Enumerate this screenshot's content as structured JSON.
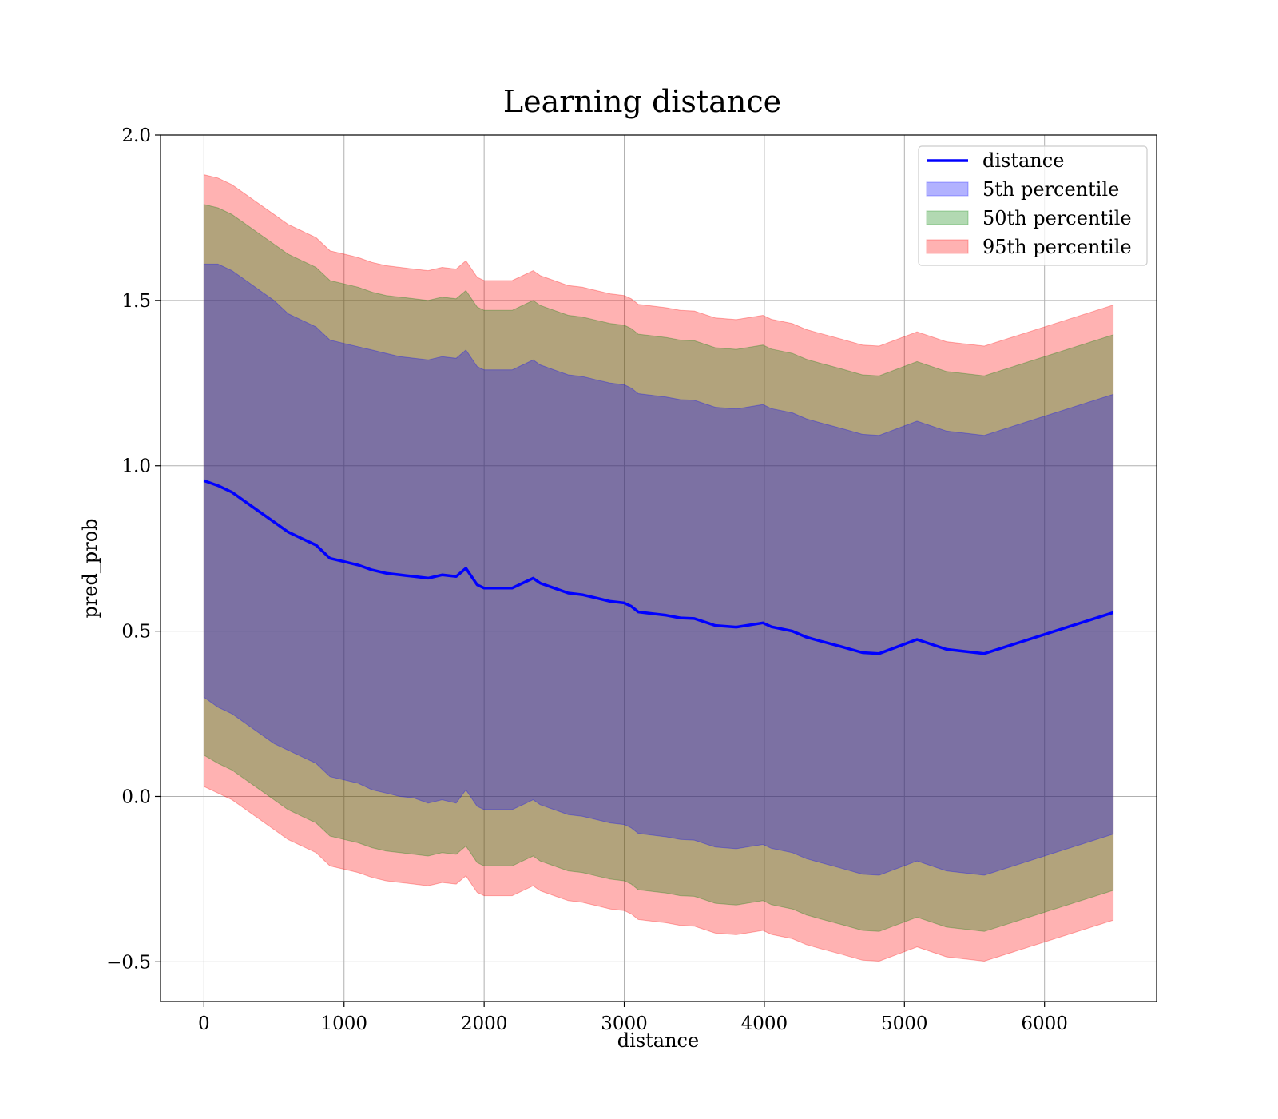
{
  "chart_data": {
    "type": "line",
    "title": "Learning distance",
    "xlabel": "distance",
    "ylabel": "pred_prob",
    "xlim": [
      -310,
      6800
    ],
    "ylim": [
      -0.62,
      2.0
    ],
    "x_ticks": [
      0,
      1000,
      2000,
      3000,
      4000,
      5000,
      6000
    ],
    "x_tick_labels": [
      "0",
      "1000",
      "2000",
      "3000",
      "4000",
      "5000",
      "6000"
    ],
    "y_ticks": [
      -0.5,
      0.0,
      0.5,
      1.0,
      1.5,
      2.0
    ],
    "y_tick_labels": [
      "−0.5",
      "0.0",
      "0.5",
      "1.0",
      "1.5",
      "2.0"
    ],
    "grid": true,
    "legend_position": "top-right",
    "legend": [
      "distance",
      "5th percentile",
      "50th percentile",
      "95th percentile"
    ],
    "x": [
      0,
      100,
      200,
      300,
      400,
      500,
      600,
      700,
      800,
      900,
      1000,
      1100,
      1200,
      1300,
      1400,
      1500,
      1600,
      1700,
      1800,
      1870,
      1950,
      2000,
      2100,
      2200,
      2300,
      2350,
      2400,
      2500,
      2600,
      2700,
      2800,
      2900,
      3000,
      3050,
      3100,
      3200,
      3300,
      3400,
      3500,
      3650,
      3800,
      3990,
      4050,
      4200,
      4300,
      4400,
      4550,
      4700,
      4820,
      5090,
      5300,
      5570,
      6490
    ],
    "series": [
      {
        "name": "distance",
        "color": "#0000ff",
        "values": [
          0.955,
          0.94,
          0.92,
          0.89,
          0.86,
          0.83,
          0.8,
          0.78,
          0.76,
          0.72,
          0.71,
          0.7,
          0.685,
          0.675,
          0.67,
          0.665,
          0.66,
          0.67,
          0.665,
          0.69,
          0.64,
          0.63,
          0.63,
          0.63,
          0.65,
          0.66,
          0.645,
          0.63,
          0.615,
          0.61,
          0.6,
          0.59,
          0.585,
          0.575,
          0.558,
          0.553,
          0.548,
          0.54,
          0.538,
          0.517,
          0.512,
          0.525,
          0.513,
          0.5,
          0.482,
          0.47,
          0.453,
          0.435,
          0.432,
          0.475,
          0.445,
          0.432,
          0.556
        ]
      },
      {
        "name": "5th percentile",
        "color": "#0000ff",
        "fill_opacity": 0.3,
        "lower": [
          0.3,
          0.27,
          0.25,
          0.22,
          0.19,
          0.16,
          0.14,
          0.12,
          0.1,
          0.06,
          0.05,
          0.04,
          0.02,
          0.01,
          0.0,
          -0.005,
          -0.02,
          -0.01,
          -0.02,
          0.02,
          -0.03,
          -0.04,
          -0.04,
          -0.04,
          -0.02,
          -0.01,
          -0.025,
          -0.04,
          -0.055,
          -0.06,
          -0.07,
          -0.08,
          -0.085,
          -0.095,
          -0.112,
          -0.117,
          -0.122,
          -0.13,
          -0.132,
          -0.153,
          -0.158,
          -0.145,
          -0.157,
          -0.17,
          -0.188,
          -0.2,
          -0.217,
          -0.235,
          -0.238,
          -0.195,
          -0.225,
          -0.238,
          -0.114
        ],
        "upper": [
          1.61,
          1.61,
          1.59,
          1.56,
          1.53,
          1.5,
          1.46,
          1.44,
          1.42,
          1.38,
          1.37,
          1.36,
          1.35,
          1.34,
          1.33,
          1.325,
          1.32,
          1.33,
          1.325,
          1.35,
          1.3,
          1.29,
          1.29,
          1.29,
          1.31,
          1.32,
          1.305,
          1.29,
          1.275,
          1.27,
          1.26,
          1.25,
          1.245,
          1.235,
          1.218,
          1.213,
          1.208,
          1.2,
          1.198,
          1.177,
          1.172,
          1.185,
          1.173,
          1.16,
          1.142,
          1.13,
          1.113,
          1.095,
          1.092,
          1.135,
          1.105,
          1.092,
          1.216
        ]
      },
      {
        "name": "50th percentile",
        "color": "#008000",
        "fill_opacity": 0.3,
        "lower": [
          0.125,
          0.1,
          0.08,
          0.05,
          0.02,
          -0.01,
          -0.04,
          -0.06,
          -0.08,
          -0.12,
          -0.13,
          -0.14,
          -0.155,
          -0.165,
          -0.17,
          -0.175,
          -0.18,
          -0.17,
          -0.175,
          -0.15,
          -0.2,
          -0.21,
          -0.21,
          -0.21,
          -0.19,
          -0.18,
          -0.195,
          -0.21,
          -0.225,
          -0.23,
          -0.24,
          -0.25,
          -0.255,
          -0.265,
          -0.282,
          -0.287,
          -0.292,
          -0.3,
          -0.302,
          -0.323,
          -0.328,
          -0.315,
          -0.327,
          -0.34,
          -0.358,
          -0.37,
          -0.387,
          -0.405,
          -0.408,
          -0.365,
          -0.395,
          -0.408,
          -0.284
        ],
        "upper": [
          1.79,
          1.78,
          1.76,
          1.73,
          1.7,
          1.67,
          1.64,
          1.62,
          1.6,
          1.56,
          1.55,
          1.54,
          1.525,
          1.515,
          1.51,
          1.505,
          1.5,
          1.51,
          1.505,
          1.53,
          1.48,
          1.47,
          1.47,
          1.47,
          1.49,
          1.5,
          1.485,
          1.47,
          1.455,
          1.45,
          1.44,
          1.43,
          1.425,
          1.415,
          1.398,
          1.393,
          1.388,
          1.38,
          1.378,
          1.357,
          1.352,
          1.365,
          1.353,
          1.34,
          1.322,
          1.31,
          1.293,
          1.275,
          1.272,
          1.315,
          1.285,
          1.272,
          1.396
        ]
      },
      {
        "name": "95th percentile",
        "color": "#ff0000",
        "fill_opacity": 0.3,
        "lower": [
          0.03,
          0.01,
          -0.01,
          -0.04,
          -0.07,
          -0.1,
          -0.13,
          -0.15,
          -0.17,
          -0.21,
          -0.22,
          -0.23,
          -0.245,
          -0.255,
          -0.26,
          -0.265,
          -0.27,
          -0.26,
          -0.265,
          -0.24,
          -0.29,
          -0.3,
          -0.3,
          -0.3,
          -0.28,
          -0.27,
          -0.285,
          -0.3,
          -0.315,
          -0.32,
          -0.33,
          -0.34,
          -0.345,
          -0.355,
          -0.372,
          -0.377,
          -0.382,
          -0.39,
          -0.392,
          -0.413,
          -0.418,
          -0.405,
          -0.417,
          -0.43,
          -0.448,
          -0.46,
          -0.477,
          -0.495,
          -0.498,
          -0.455,
          -0.485,
          -0.498,
          -0.374
        ],
        "upper": [
          1.88,
          1.87,
          1.85,
          1.82,
          1.79,
          1.76,
          1.73,
          1.71,
          1.69,
          1.65,
          1.64,
          1.63,
          1.615,
          1.605,
          1.6,
          1.595,
          1.59,
          1.6,
          1.595,
          1.62,
          1.57,
          1.56,
          1.56,
          1.56,
          1.58,
          1.59,
          1.575,
          1.56,
          1.545,
          1.54,
          1.53,
          1.52,
          1.515,
          1.505,
          1.488,
          1.483,
          1.478,
          1.47,
          1.468,
          1.447,
          1.442,
          1.455,
          1.443,
          1.43,
          1.412,
          1.4,
          1.383,
          1.365,
          1.362,
          1.405,
          1.375,
          1.362,
          1.486
        ]
      }
    ]
  }
}
